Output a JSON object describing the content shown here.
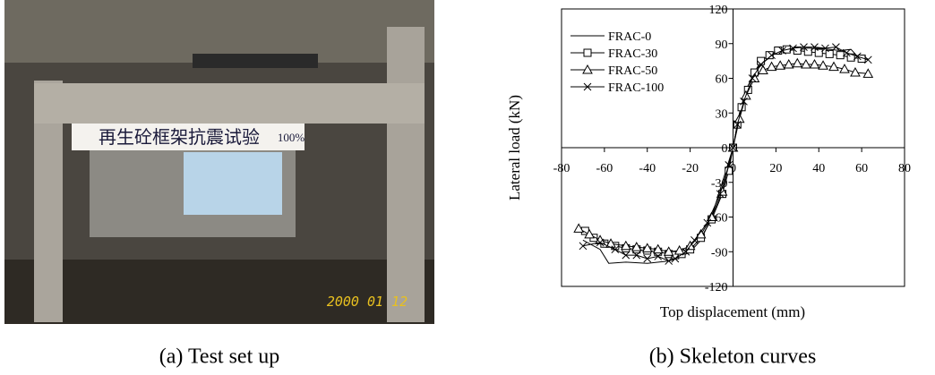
{
  "figure": {
    "panel_a": {
      "banner": "再生砼框架抗震试验",
      "banner_pct": "100%",
      "date_stamp": "2000 01 12",
      "caption": "(a) Test set up"
    }
  },
  "chart_data": {
    "type": "line",
    "caption": "(b) Skeleton curves",
    "xlabel": "Top displacement (mm)",
    "ylabel": "Lateral load (kN)",
    "xlim": [
      -80,
      80
    ],
    "ylim": [
      -120,
      120
    ],
    "xticks": [
      -80,
      -60,
      -40,
      -20,
      0,
      20,
      40,
      60,
      80
    ],
    "yticks": [
      -120,
      -90,
      -60,
      -30,
      0,
      30,
      60,
      90,
      120
    ],
    "legend": "upper left",
    "series": [
      {
        "name": "FRAC-0",
        "color": "#000000",
        "marker": "none",
        "x": [
          -70,
          -62,
          -58,
          -50,
          -40,
          -30,
          -25,
          -20,
          -15,
          -10,
          -5,
          0,
          3,
          6,
          10,
          15,
          20,
          25,
          30,
          40,
          50,
          55,
          60,
          63
        ],
        "values": [
          -80,
          -88,
          -100,
          -99,
          -100,
          -98,
          -95,
          -90,
          -80,
          -60,
          -30,
          0,
          30,
          50,
          65,
          75,
          82,
          86,
          85,
          86,
          84,
          85,
          75,
          77
        ]
      },
      {
        "name": "FRAC-30",
        "color": "#000000",
        "marker": "square",
        "x": [
          -69,
          -65,
          -60,
          -55,
          -50,
          -45,
          -40,
          -35,
          -30,
          -27,
          -24,
          -20,
          -15,
          -10,
          -5,
          -2,
          0,
          2,
          4,
          7,
          10,
          13,
          17,
          21,
          25,
          30,
          35,
          40,
          45,
          50,
          55,
          60
        ],
        "values": [
          -72,
          -78,
          -83,
          -85,
          -87,
          -88,
          -89,
          -90,
          -92,
          -93,
          -92,
          -88,
          -78,
          -62,
          -40,
          -20,
          0,
          20,
          35,
          50,
          65,
          75,
          80,
          84,
          85,
          84,
          83,
          82,
          81,
          80,
          78,
          77
        ]
      },
      {
        "name": "FRAC-50",
        "color": "#000000",
        "marker": "triangle",
        "x": [
          -72,
          -67,
          -62,
          -57,
          -50,
          -45,
          -40,
          -35,
          -30,
          -25,
          -20,
          -15,
          -10,
          -5,
          0,
          3,
          6,
          10,
          14,
          18,
          22,
          26,
          30,
          34,
          38,
          42,
          47,
          52,
          57,
          63
        ],
        "values": [
          -70,
          -75,
          -80,
          -83,
          -85,
          -86,
          -87,
          -88,
          -90,
          -89,
          -85,
          -75,
          -60,
          -38,
          0,
          25,
          45,
          60,
          67,
          70,
          71,
          72,
          73,
          72,
          72,
          71,
          70,
          68,
          65,
          64
        ]
      },
      {
        "name": "FRAC-100",
        "color": "#000000",
        "marker": "x",
        "x": [
          -70,
          -62,
          -55,
          -50,
          -45,
          -40,
          -35,
          -30,
          -27,
          -22,
          -18,
          -12,
          -6,
          -2,
          0,
          2,
          5,
          9,
          13,
          18,
          23,
          28,
          33,
          38,
          43,
          48,
          53,
          58,
          63
        ],
        "values": [
          -85,
          -82,
          -88,
          -93,
          -93,
          -96,
          -94,
          -98,
          -96,
          -90,
          -80,
          -65,
          -40,
          -15,
          0,
          20,
          40,
          60,
          72,
          80,
          84,
          86,
          87,
          87,
          86,
          87,
          82,
          79,
          76
        ]
      }
    ]
  }
}
